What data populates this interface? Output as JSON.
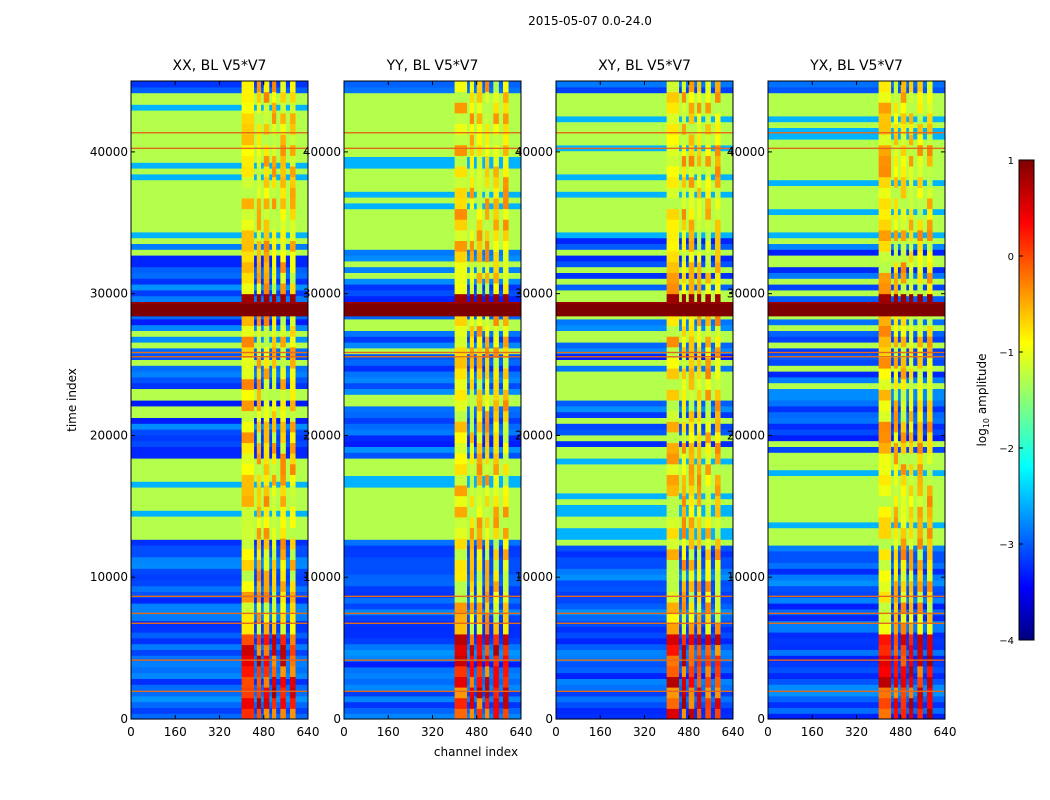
{
  "figure_title": "2015-05-07 0.0-24.0",
  "chart_data": {
    "type": "heatmap",
    "suptitle": "2015-05-07 0.0-24.0",
    "xlabel": "channel index",
    "ylabel": "time index",
    "xlim": [
      0,
      640
    ],
    "ylim": [
      0,
      45000
    ],
    "xticks": [
      "0",
      "160",
      "320",
      "480",
      "640"
    ],
    "yticks": [
      "0",
      "10000",
      "20000",
      "30000",
      "40000"
    ],
    "panels": [
      {
        "title": "XX, BL V5*V7",
        "pol": "XX"
      },
      {
        "title": "YY, BL V5*V7",
        "pol": "YY"
      },
      {
        "title": "XY, BL V5*V7",
        "pol": "XY"
      },
      {
        "title": "YX, BL V5*V7",
        "pol": "YX"
      }
    ],
    "colorbar": {
      "label_main": "log",
      "label_sub": "10",
      "label_rest": " amplitude",
      "range": [
        -4,
        1
      ],
      "ticks": [
        "1",
        "0",
        "−1",
        "−2",
        "−3",
        "−4"
      ],
      "colormap": "jet"
    },
    "features": {
      "flagged_time_ranges": [
        [
          12400,
          18000
        ],
        [
          33800,
          44000
        ]
      ],
      "saturated_band": [
        28400,
        29300
      ],
      "rfi_channel_range": [
        400,
        600
      ],
      "strong_signal_time_range": [
        0,
        6000
      ]
    }
  }
}
